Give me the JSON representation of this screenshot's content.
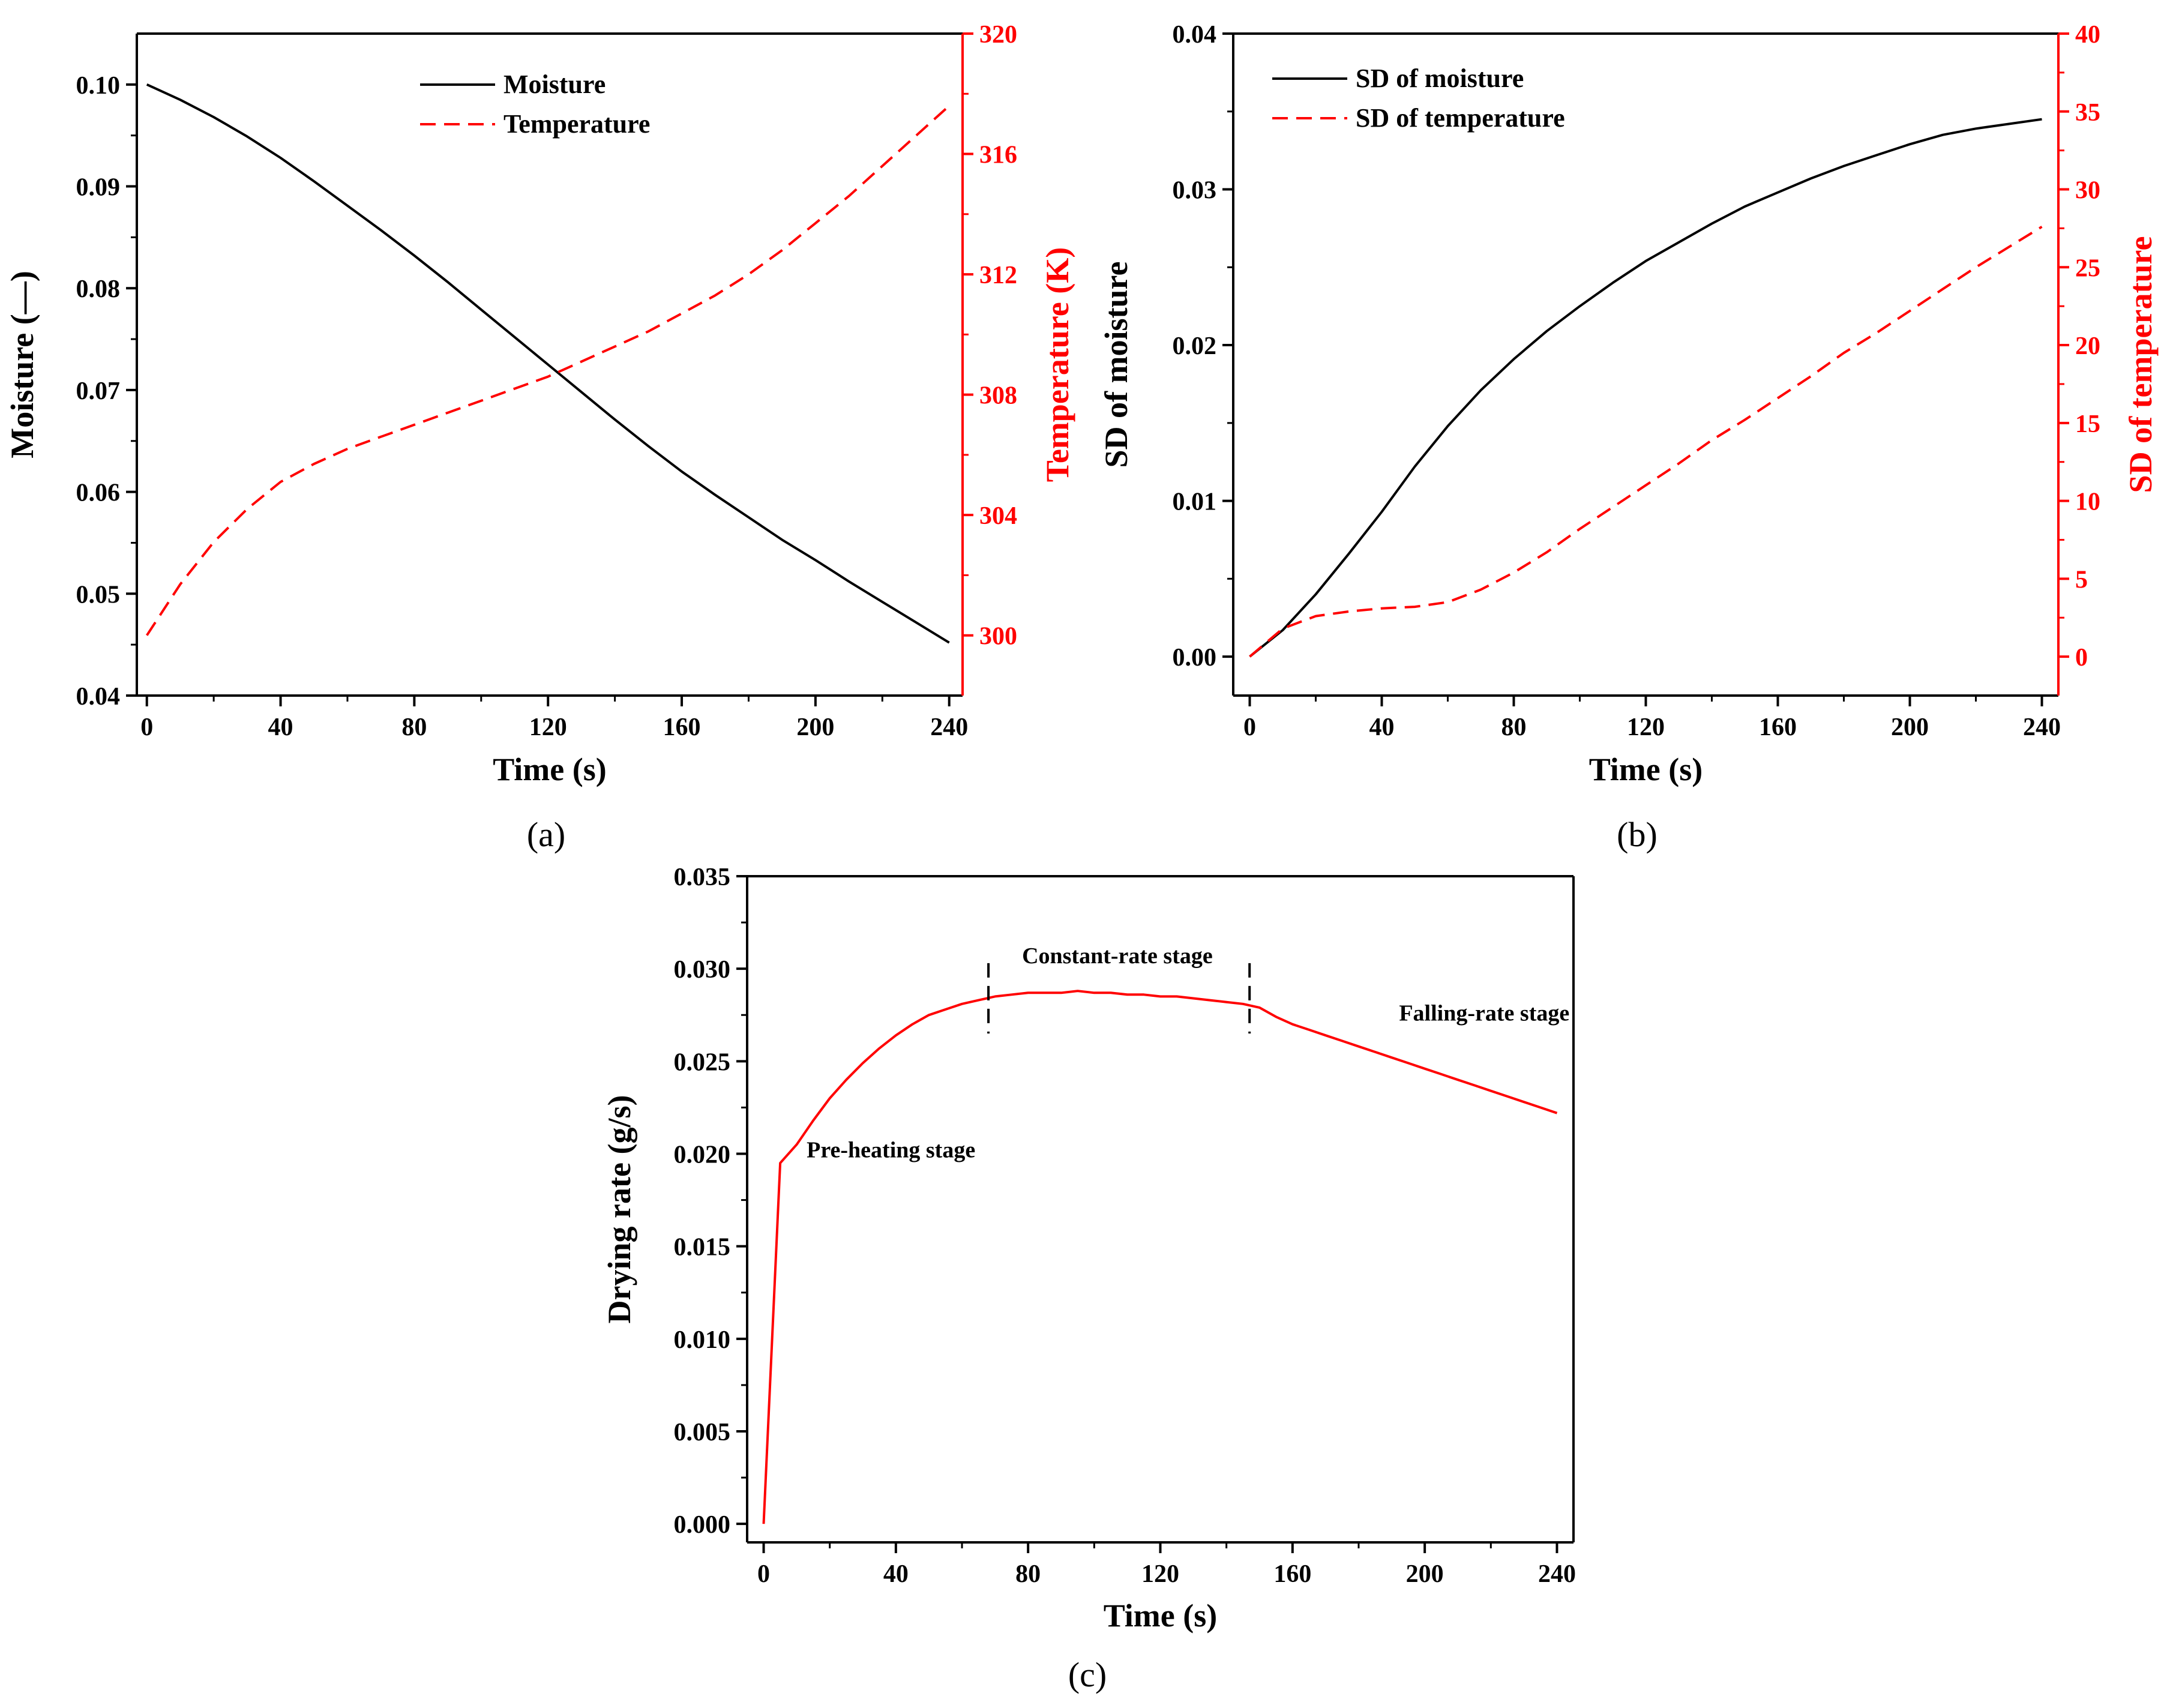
{
  "chart_data": [
    {
      "id": "a",
      "type": "line",
      "panel_label": "(a)",
      "xlabel": "Time (s)",
      "ylabel": "Moisture (—)",
      "ylabel_right": "Temperature (K)",
      "xlim": [
        -3,
        244
      ],
      "ylim": [
        0.04,
        0.105
      ],
      "ylim_right": [
        298,
        320
      ],
      "xticks": [
        0,
        40,
        80,
        120,
        160,
        200,
        240
      ],
      "xtick_labels": [
        "0",
        "40",
        "80",
        "120",
        "160",
        "200",
        "240"
      ],
      "yticks": [
        0.04,
        0.05,
        0.06,
        0.07,
        0.08,
        0.09,
        0.1
      ],
      "ytick_labels": [
        "0.04",
        "0.05",
        "0.06",
        "0.07",
        "0.08",
        "0.09",
        "0.10"
      ],
      "yticks_right": [
        300,
        304,
        308,
        312,
        316,
        320
      ],
      "ytick_labels_right": [
        "300",
        "304",
        "308",
        "312",
        "316",
        "320"
      ],
      "legend_position": "top-center",
      "series": [
        {
          "name": "Moisture",
          "axis": "left",
          "color": "#000000",
          "dash": "solid",
          "x": [
            0,
            10,
            20,
            30,
            40,
            50,
            60,
            70,
            80,
            90,
            100,
            110,
            120,
            130,
            140,
            150,
            160,
            170,
            180,
            190,
            200,
            210,
            220,
            230,
            240
          ],
          "y": [
            0.1,
            0.0985,
            0.0968,
            0.0949,
            0.0928,
            0.0905,
            0.0881,
            0.0857,
            0.0832,
            0.0806,
            0.0779,
            0.0752,
            0.0725,
            0.0698,
            0.0671,
            0.0645,
            0.062,
            0.0597,
            0.0575,
            0.0553,
            0.0533,
            0.0512,
            0.0492,
            0.0472,
            0.0452
          ]
        },
        {
          "name": "Temperature",
          "axis": "right",
          "color": "#ff0000",
          "dash": "dashed",
          "x": [
            0,
            10,
            20,
            30,
            40,
            50,
            60,
            70,
            80,
            90,
            100,
            110,
            120,
            130,
            140,
            150,
            160,
            170,
            180,
            190,
            200,
            210,
            220,
            230,
            240
          ],
          "y": [
            300.0,
            301.7,
            303.1,
            304.2,
            305.1,
            305.7,
            306.2,
            306.6,
            307.0,
            307.4,
            307.8,
            308.2,
            308.6,
            309.1,
            309.6,
            310.1,
            310.7,
            311.3,
            312.0,
            312.8,
            313.7,
            314.6,
            315.6,
            316.6,
            317.6
          ]
        }
      ]
    },
    {
      "id": "b",
      "type": "line",
      "panel_label": "(b)",
      "xlabel": "Time (s)",
      "ylabel": "SD of moisture",
      "ylabel_right": "SD of temperature",
      "xlim": [
        -5,
        245
      ],
      "ylim": [
        -0.0025,
        0.04
      ],
      "ylim_right": [
        -2.5,
        40
      ],
      "xticks": [
        0,
        40,
        80,
        120,
        160,
        200,
        240
      ],
      "xtick_labels": [
        "0",
        "40",
        "80",
        "120",
        "160",
        "200",
        "240"
      ],
      "yticks": [
        0.0,
        0.01,
        0.02,
        0.03,
        0.04
      ],
      "ytick_labels": [
        "0.00",
        "0.01",
        "0.02",
        "0.03",
        "0.04"
      ],
      "yticks_right": [
        0,
        5,
        10,
        15,
        20,
        25,
        30,
        35,
        40
      ],
      "ytick_labels_right": [
        "0",
        "5",
        "10",
        "15",
        "20",
        "25",
        "30",
        "35",
        "40"
      ],
      "legend_position": "top-left",
      "series": [
        {
          "name": "SD of moisture",
          "axis": "left",
          "color": "#000000",
          "dash": "solid",
          "x": [
            0,
            10,
            20,
            30,
            40,
            50,
            60,
            70,
            80,
            90,
            100,
            110,
            120,
            130,
            140,
            150,
            160,
            170,
            180,
            190,
            200,
            210,
            220,
            230,
            240
          ],
          "y": [
            0.0,
            0.0017,
            0.004,
            0.0066,
            0.0093,
            0.0122,
            0.0148,
            0.0171,
            0.0191,
            0.0209,
            0.0225,
            0.024,
            0.0254,
            0.0266,
            0.0278,
            0.0289,
            0.0298,
            0.0307,
            0.0315,
            0.0322,
            0.0329,
            0.0335,
            0.0339,
            0.0342,
            0.0345
          ]
        },
        {
          "name": "SD of temperature",
          "axis": "right",
          "color": "#ff0000",
          "dash": "dashed",
          "x": [
            0,
            10,
            20,
            30,
            40,
            50,
            60,
            70,
            80,
            90,
            100,
            110,
            120,
            130,
            140,
            150,
            160,
            170,
            180,
            190,
            200,
            210,
            220,
            230,
            240
          ],
          "y": [
            0.0,
            1.8,
            2.6,
            2.9,
            3.1,
            3.2,
            3.5,
            4.3,
            5.4,
            6.7,
            8.2,
            9.6,
            11.0,
            12.4,
            13.9,
            15.2,
            16.6,
            18.0,
            19.5,
            20.8,
            22.2,
            23.6,
            25.0,
            26.3,
            27.6
          ]
        }
      ]
    },
    {
      "id": "c",
      "type": "line",
      "panel_label": "(c)",
      "xlabel": "Time (s)",
      "ylabel": "Drying rate (g/s)",
      "xlim": [
        -5,
        245
      ],
      "ylim": [
        -0.001,
        0.035
      ],
      "xticks": [
        0,
        40,
        80,
        120,
        160,
        200,
        240
      ],
      "xtick_labels": [
        "0",
        "40",
        "80",
        "120",
        "160",
        "200",
        "240"
      ],
      "yticks": [
        0.0,
        0.005,
        0.01,
        0.015,
        0.02,
        0.025,
        0.03,
        0.035
      ],
      "ytick_labels": [
        "0.000",
        "0.005",
        "0.010",
        "0.015",
        "0.020",
        "0.025",
        "0.030",
        "0.035"
      ],
      "stage_markers_x": [
        68,
        147
      ],
      "annotations": [
        {
          "text": "Pre-heating stage",
          "x": 13,
          "y": 0.0198
        },
        {
          "text": "Constant-rate stage",
          "x": 107,
          "y": 0.0303
        },
        {
          "text": "Falling-rate stage",
          "x": 218,
          "y": 0.0272
        }
      ],
      "series": [
        {
          "name": "Drying rate",
          "color": "#ff0000",
          "dash": "solid",
          "x": [
            0,
            5,
            10,
            15,
            20,
            25,
            30,
            35,
            40,
            45,
            50,
            55,
            60,
            65,
            70,
            75,
            80,
            85,
            90,
            95,
            100,
            105,
            110,
            115,
            120,
            125,
            130,
            135,
            140,
            145,
            150,
            155,
            160,
            165,
            170,
            175,
            180,
            185,
            190,
            195,
            200,
            205,
            210,
            215,
            220,
            225,
            230,
            235,
            240
          ],
          "y": [
            0.0,
            0.0195,
            0.0205,
            0.0218,
            0.023,
            0.024,
            0.0249,
            0.0257,
            0.0264,
            0.027,
            0.0275,
            0.0278,
            0.0281,
            0.0283,
            0.0285,
            0.0286,
            0.0287,
            0.0287,
            0.0287,
            0.0288,
            0.0287,
            0.0287,
            0.0286,
            0.0286,
            0.0285,
            0.0285,
            0.0284,
            0.0283,
            0.0282,
            0.0281,
            0.0279,
            0.0274,
            0.027,
            0.0267,
            0.0264,
            0.0261,
            0.0258,
            0.0255,
            0.0252,
            0.0249,
            0.0246,
            0.0243,
            0.024,
            0.0237,
            0.0234,
            0.0231,
            0.0228,
            0.0225,
            0.0222
          ]
        }
      ]
    }
  ]
}
